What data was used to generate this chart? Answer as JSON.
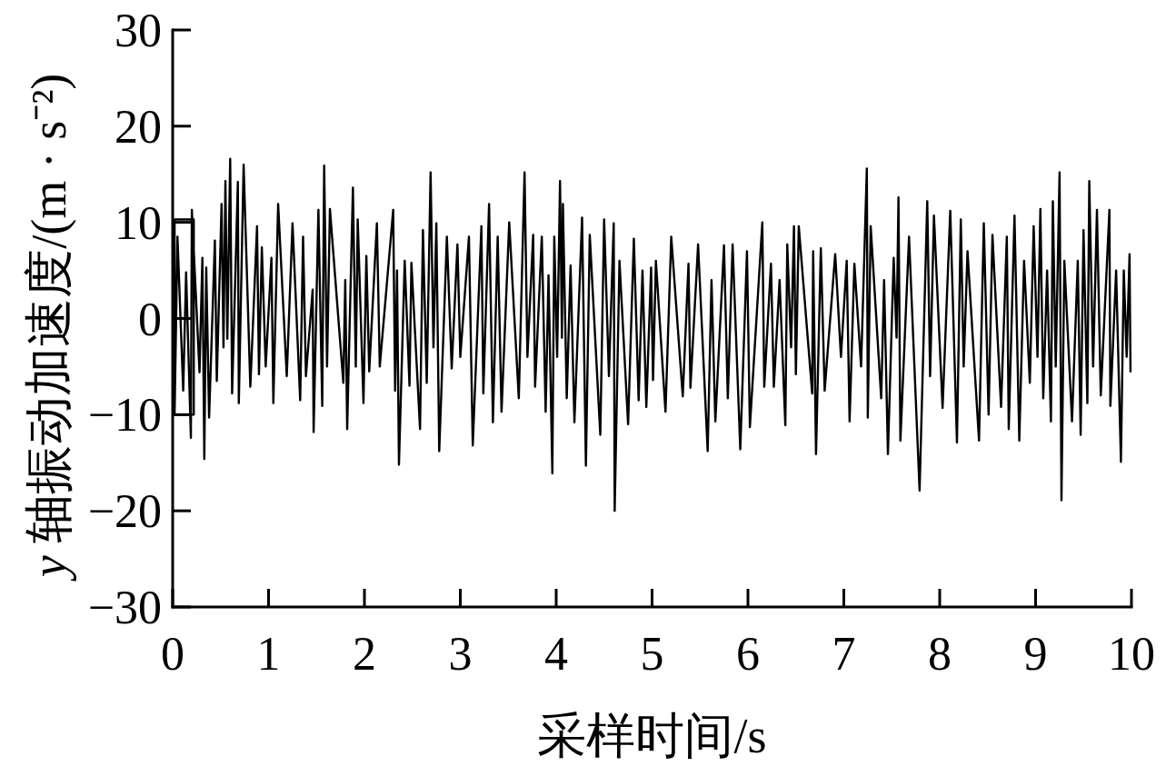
{
  "chart_data": {
    "type": "line",
    "xlabel": "采样时间/s",
    "ylabel": "*y* 轴振动加速度/(m · s⁻²)",
    "color": "#000000",
    "xlim": [
      0,
      10
    ],
    "ylim": [
      -30,
      30
    ],
    "xticks": [
      0,
      1,
      2,
      3,
      4,
      5,
      6,
      7,
      8,
      9,
      10
    ],
    "yticks": [
      -30,
      -20,
      -10,
      0,
      10,
      20,
      30
    ],
    "x": [
      0.02,
      0.02,
      0.22,
      0.22,
      0.02,
      0.05,
      0.11,
      0.14,
      0.19,
      0.2,
      0.28,
      0.31,
      0.33,
      0.35,
      0.38,
      0.44,
      0.46,
      0.51,
      0.53,
      0.55,
      0.57,
      0.6,
      0.62,
      0.68,
      0.69,
      0.74,
      0.81,
      0.88,
      0.9,
      0.93,
      0.97,
      1.03,
      1.05,
      1.1,
      1.19,
      1.25,
      1.33,
      1.36,
      1.39,
      1.46,
      1.47,
      1.52,
      1.56,
      1.58,
      1.61,
      1.64,
      1.78,
      1.8,
      1.82,
      1.88,
      1.91,
      1.93,
      1.99,
      2.02,
      2.05,
      2.13,
      2.16,
      2.3,
      2.32,
      2.34,
      2.36,
      2.42,
      2.47,
      2.49,
      2.58,
      2.61,
      2.65,
      2.69,
      2.72,
      2.75,
      2.78,
      2.86,
      2.91,
      2.97,
      3,
      3.09,
      3.13,
      3.22,
      3.24,
      3.3,
      3.34,
      3.39,
      3.43,
      3.51,
      3.61,
      3.67,
      3.7,
      3.76,
      3.78,
      3.85,
      3.89,
      3.92,
      3.96,
      3.98,
      4.01,
      4.04,
      4.06,
      4.07,
      4.11,
      4.15,
      4.19,
      4.27,
      4.31,
      4.35,
      4.46,
      4.5,
      4.55,
      4.6,
      4.61,
      4.66,
      4.75,
      4.81,
      4.86,
      4.9,
      4.94,
      4.99,
      5.01,
      5.04,
      5.14,
      5.2,
      5.32,
      5.38,
      5.4,
      5.48,
      5.58,
      5.62,
      5.66,
      5.75,
      5.79,
      5.84,
      5.92,
      5.99,
      6.02,
      6.15,
      6.17,
      6.24,
      6.27,
      6.33,
      6.39,
      6.41,
      6.45,
      6.48,
      6.5,
      6.53,
      6.67,
      6.68,
      6.71,
      6.76,
      6.8,
      6.91,
      6.97,
      7.03,
      7.06,
      7.11,
      7.18,
      7.24,
      7.25,
      7.28,
      7.39,
      7.42,
      7.46,
      7.52,
      7.55,
      7.57,
      7.59,
      7.68,
      7.79,
      7.87,
      7.9,
      7.94,
      8.03,
      8.11,
      8.18,
      8.22,
      8.25,
      8.29,
      8.41,
      8.46,
      8.51,
      8.55,
      8.64,
      8.7,
      8.72,
      8.78,
      8.83,
      8.88,
      8.94,
      8.98,
      9.02,
      9.05,
      9.08,
      9.12,
      9.16,
      9.18,
      9.21,
      9.25,
      9.27,
      9.3,
      9.38,
      9.44,
      9.47,
      9.5,
      9.54,
      9.56,
      9.6,
      9.64,
      9.68,
      9.77,
      9.78,
      9.84,
      9.89,
      9.92,
      9.95,
      9.98,
      9.99
    ],
    "values": [
      -10,
      10.3,
      10.3,
      -10,
      -10,
      8.5,
      -7.5,
      4.8,
      -12.4,
      11.3,
      -5.6,
      6.3,
      -14.6,
      5.3,
      -10.3,
      8.1,
      -6.5,
      11.9,
      -3,
      14.3,
      -2.1,
      16.6,
      -7.8,
      14.2,
      -8.8,
      16,
      -7.1,
      9.6,
      -5.8,
      7.4,
      -5,
      6.3,
      -8.8,
      11.9,
      -6,
      9.9,
      -8.5,
      8.5,
      -6,
      3,
      -11.8,
      11.3,
      -9.1,
      15.9,
      -5,
      11.4,
      -6.7,
      4,
      -11.5,
      13.6,
      -5,
      10.3,
      -8.8,
      6.5,
      -5.5,
      9.9,
      -5,
      11.3,
      -7.5,
      5,
      -15.2,
      6,
      -7,
      5.8,
      -11.5,
      9.2,
      -6.7,
      15.2,
      -3,
      9.9,
      -13.8,
      8.5,
      -5.2,
      7.7,
      -4,
      8.5,
      -13.2,
      9.6,
      -7.8,
      11.9,
      -10.8,
      8.5,
      -9.7,
      10,
      -8.3,
      15.2,
      -4,
      8.7,
      -7.1,
      8.5,
      -9.7,
      4.5,
      -16.1,
      8.5,
      -4,
      14.3,
      -2,
      11.9,
      -8.3,
      5.5,
      -10.8,
      10.5,
      -15.3,
      8.7,
      -12.1,
      10.3,
      -6,
      9.9,
      -20,
      6,
      -11,
      8.3,
      -8.5,
      5,
      -9.2,
      5.3,
      -6.4,
      6,
      -9.7,
      8.5,
      -8.1,
      5.7,
      -7.2,
      7.7,
      -13.8,
      4,
      -10.7,
      7.6,
      -8.3,
      7.7,
      -13.6,
      7,
      -11.3,
      10,
      -7.1,
      5.7,
      -7.1,
      4,
      -11.1,
      7.7,
      -3,
      9.6,
      -5.8,
      9.6,
      -7.8,
      7,
      -14.1,
      7.3,
      -7.5,
      6.7,
      -4,
      6,
      -10.7,
      5.7,
      -5,
      15.6,
      -10.3,
      9.6,
      -8.3,
      4,
      -14.1,
      6.3,
      -2,
      12.6,
      -12.7,
      8.5,
      -17.9,
      12.2,
      -6,
      10.7,
      -9.3,
      11.2,
      -12.9,
      10.3,
      -5,
      7,
      -12.7,
      9.9,
      -10,
      8.7,
      -9.2,
      8.5,
      -11.5,
      10.7,
      -12.7,
      6,
      -6.7,
      9.6,
      -4,
      11.4,
      -8.3,
      5,
      -10.7,
      12.2,
      -5,
      15.2,
      -18.9,
      6,
      -10.7,
      6,
      -12.1,
      9.2,
      -8.8,
      14.3,
      -5,
      11.3,
      -8,
      11.3,
      -9.1,
      5,
      -14.9,
      5,
      -4,
      6.7,
      -5.6
    ]
  }
}
